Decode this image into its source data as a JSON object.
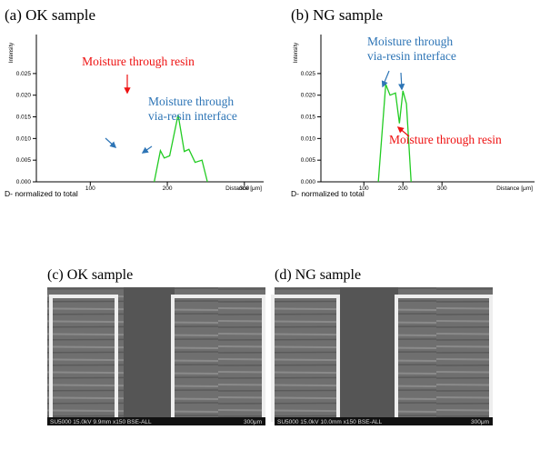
{
  "chart_data": [
    {
      "type": "line",
      "title": "(a) OK sample",
      "ylabel": "Intensity",
      "xlabel": "Distance [μm]",
      "subtitle": "D- normalized to total",
      "x": [
        183,
        191,
        196,
        203,
        214,
        222,
        228,
        236,
        245,
        252
      ],
      "values": [
        0,
        0.0072,
        0.0055,
        0.006,
        0.0155,
        0.007,
        0.0075,
        0.0045,
        0.005,
        0
      ],
      "color": "#22cc22",
      "xlim": [
        30,
        325
      ],
      "xticks": [
        100,
        200,
        300
      ],
      "ylim": [
        0,
        0.034
      ],
      "yticks": [
        {
          "value": 0,
          "label": "0.000"
        },
        {
          "value": 0.005,
          "label": "0.005"
        },
        {
          "value": 0.01,
          "label": "0.010"
        },
        {
          "value": 0.015,
          "label": "0.015"
        },
        {
          "value": 0.02,
          "label": "0.020"
        },
        {
          "value": 0.025,
          "label": "0.025"
        }
      ],
      "annotations": [
        {
          "lines": [
            "Moisture through resin"
          ],
          "color": "#ee1111"
        },
        {
          "lines": [
            "Moisture through",
            "via-resin interface"
          ],
          "color": "#2e75b6"
        }
      ]
    },
    {
      "type": "line",
      "title": "(b) NG sample",
      "ylabel": "Intensity",
      "xlabel": "Distance [μm]",
      "subtitle": "D- normalized to total",
      "x": [
        137,
        156,
        167,
        181,
        191,
        200,
        209,
        221
      ],
      "values": [
        0,
        0.0225,
        0.02,
        0.0205,
        0.0135,
        0.021,
        0.018,
        0
      ],
      "color": "#22cc22",
      "xlim": [
        -10,
        537
      ],
      "xticks": [
        100,
        200,
        300
      ],
      "ylim": [
        0,
        0.034
      ],
      "yticks": [
        {
          "value": 0,
          "label": "0.000"
        },
        {
          "value": 0.005,
          "label": "0.005"
        },
        {
          "value": 0.01,
          "label": "0.010"
        },
        {
          "value": 0.015,
          "label": "0.015"
        },
        {
          "value": 0.02,
          "label": "0.020"
        },
        {
          "value": 0.025,
          "label": "0.025"
        }
      ],
      "annotations": [
        {
          "lines": [
            "Moisture through",
            "via-resin interface"
          ],
          "color": "#2e75b6"
        },
        {
          "lines": [
            "Moisture through resin"
          ],
          "color": "#ee1111"
        }
      ]
    }
  ],
  "images": [
    {
      "title": "(c) OK sample",
      "caption": "SU5000 15.0kV 9.9mm x150 BSE-ALL",
      "scale": "300μm"
    },
    {
      "title": "(d) NG sample",
      "caption": "SU5000 15.0kV 10.0mm x150 BSE-ALL",
      "scale": "300μm"
    }
  ]
}
